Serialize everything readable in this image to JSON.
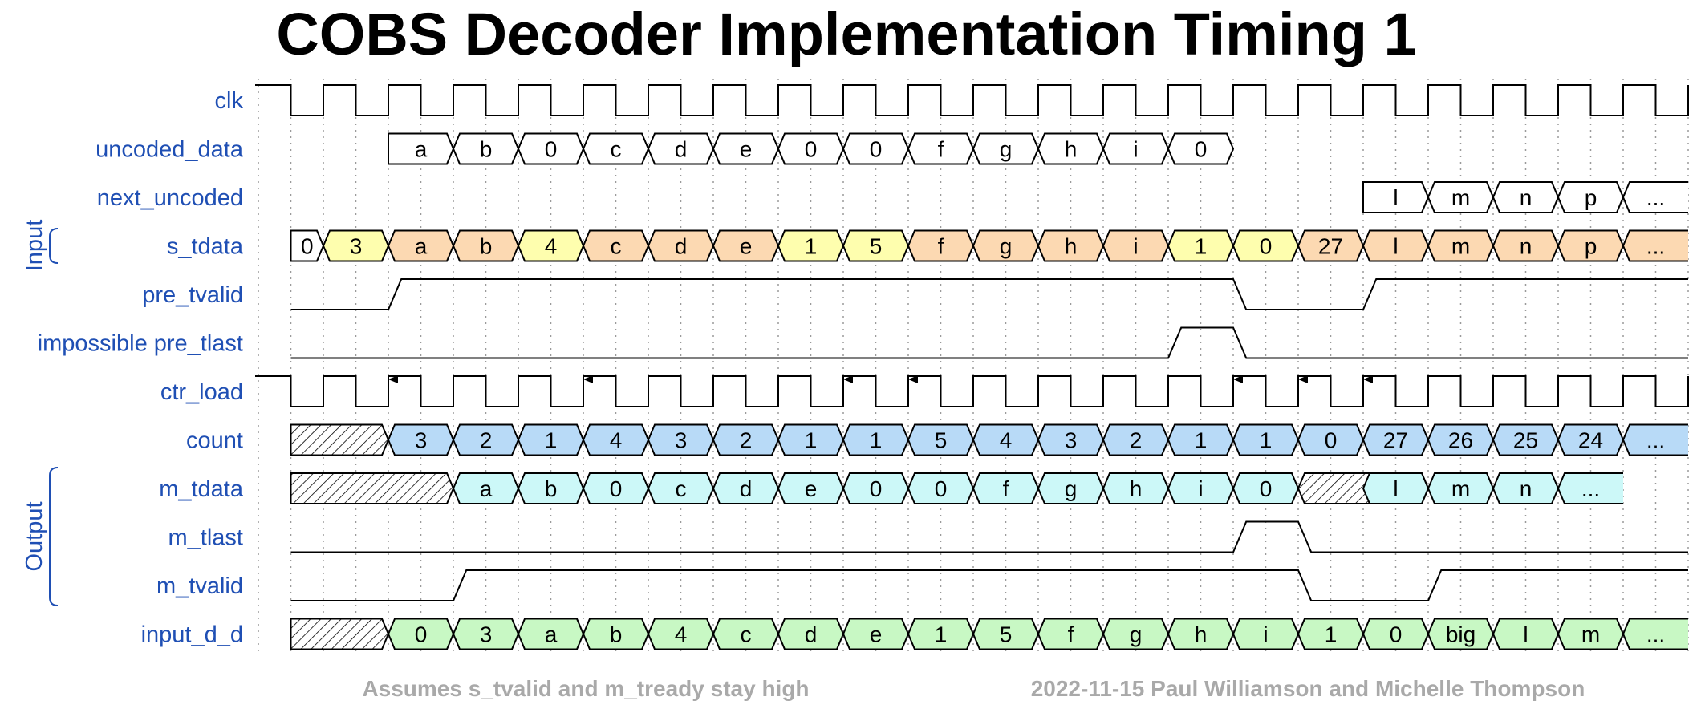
{
  "title": "COBS Decoder Implementation Timing 1",
  "footer_left": "Assumes s_tvalid and m_tready stay high",
  "footer_right": "2022-11-15 Paul Williamson and Michelle Thompson",
  "groups": {
    "input": "Input",
    "output": "Output"
  },
  "colors": {
    "label": "#1f4fb4",
    "white": "#ffffff",
    "yellow": "#fefeae",
    "orange": "#fcd9b2",
    "blue": "#b8daf7",
    "cyan": "#ccf8f8",
    "green": "#c8f8c4",
    "footer": "#a9a9a9"
  },
  "signals": [
    {
      "name": "clk",
      "kind": "clock",
      "cycles": 22
    },
    {
      "name": "uncoded_data",
      "kind": "bus",
      "start": 2,
      "values": [
        "a",
        "b",
        "0",
        "c",
        "d",
        "e",
        "0",
        "0",
        "f",
        "g",
        "h",
        "i",
        "0"
      ],
      "colors": [
        "white",
        "white",
        "white",
        "white",
        "white",
        "white",
        "white",
        "white",
        "white",
        "white",
        "white",
        "white",
        "white"
      ]
    },
    {
      "name": "next_uncoded",
      "kind": "bus",
      "start": 17,
      "values": [
        "l",
        "m",
        "n",
        "p",
        "..."
      ],
      "colors": [
        "white",
        "white",
        "white",
        "white",
        "white"
      ]
    },
    {
      "name": "s_tdata",
      "kind": "bus",
      "start": 0.5,
      "values": [
        "0",
        "3",
        "a",
        "b",
        "4",
        "c",
        "d",
        "e",
        "1",
        "5",
        "f",
        "g",
        "h",
        "i",
        "1",
        "0",
        "27",
        "l",
        "m",
        "n",
        "p",
        "..."
      ],
      "colors": [
        "white",
        "yellow",
        "orange",
        "orange",
        "yellow",
        "orange",
        "orange",
        "orange",
        "yellow",
        "yellow",
        "orange",
        "orange",
        "orange",
        "orange",
        "yellow",
        "yellow",
        "orange",
        "orange",
        "orange",
        "orange",
        "orange",
        "orange"
      ]
    },
    {
      "name": "pre_tvalid",
      "kind": "level",
      "points": [
        [
          0.5,
          0
        ],
        [
          2,
          0
        ],
        [
          2.2,
          1
        ],
        [
          15,
          1
        ],
        [
          15.2,
          0
        ],
        [
          17,
          0
        ],
        [
          17.2,
          1
        ],
        [
          22,
          1
        ]
      ]
    },
    {
      "name": "impossible pre_tlast",
      "kind": "level",
      "points": [
        [
          0.5,
          0
        ],
        [
          14,
          0
        ],
        [
          14.2,
          1
        ],
        [
          15,
          1
        ],
        [
          15.2,
          0
        ],
        [
          22,
          0
        ]
      ]
    },
    {
      "name": "ctr_load",
      "kind": "clock",
      "cycles": 22,
      "arrows": [
        2,
        5,
        9,
        10,
        15,
        16,
        17
      ]
    },
    {
      "name": "count",
      "kind": "bus",
      "start": 0.5,
      "hatch": [
        0.5,
        2
      ],
      "values": [
        "3",
        "2",
        "1",
        "4",
        "3",
        "2",
        "1",
        "1",
        "5",
        "4",
        "3",
        "2",
        "1",
        "1",
        "0",
        "27",
        "26",
        "25",
        "24",
        "..."
      ],
      "colors": [
        "blue",
        "blue",
        "blue",
        "blue",
        "blue",
        "blue",
        "blue",
        "blue",
        "blue",
        "blue",
        "blue",
        "blue",
        "blue",
        "blue",
        "blue",
        "blue",
        "blue",
        "blue",
        "blue",
        "blue"
      ]
    },
    {
      "name": "m_tdata",
      "kind": "bus",
      "start": 0.5,
      "hatch": [
        0.5,
        3
      ],
      "values": [
        "a",
        "b",
        "0",
        "c",
        "d",
        "e",
        "0",
        "0",
        "f",
        "g",
        "h",
        "i",
        "0",
        null,
        "l",
        "m",
        "n",
        "..."
      ],
      "colors": [
        "cyan",
        "cyan",
        "cyan",
        "cyan",
        "cyan",
        "cyan",
        "cyan",
        "cyan",
        "cyan",
        "cyan",
        "cyan",
        "cyan",
        "cyan",
        "hatch2",
        "cyan",
        "cyan",
        "cyan",
        "cyan"
      ]
    },
    {
      "name": "m_tlast",
      "kind": "level",
      "points": [
        [
          0.5,
          0
        ],
        [
          15,
          0
        ],
        [
          15.2,
          1
        ],
        [
          16,
          1
        ],
        [
          16.2,
          0
        ],
        [
          22,
          0
        ]
      ]
    },
    {
      "name": "m_tvalid",
      "kind": "level",
      "points": [
        [
          0.5,
          0
        ],
        [
          3,
          0
        ],
        [
          3.2,
          1
        ],
        [
          16,
          1
        ],
        [
          16.2,
          0
        ],
        [
          18,
          0
        ],
        [
          18.2,
          1
        ],
        [
          22,
          1
        ]
      ]
    },
    {
      "name": "input_d_d",
      "kind": "bus",
      "start": 0.5,
      "hatch": [
        0.5,
        2
      ],
      "values": [
        "0",
        "3",
        "a",
        "b",
        "4",
        "c",
        "d",
        "e",
        "1",
        "5",
        "f",
        "g",
        "h",
        "i",
        "1",
        "0",
        "big",
        "l",
        "m",
        "..."
      ],
      "colors": [
        "green",
        "green",
        "green",
        "green",
        "green",
        "green",
        "green",
        "green",
        "green",
        "green",
        "green",
        "green",
        "green",
        "green",
        "green",
        "green",
        "green",
        "green",
        "green",
        "green"
      ]
    }
  ]
}
